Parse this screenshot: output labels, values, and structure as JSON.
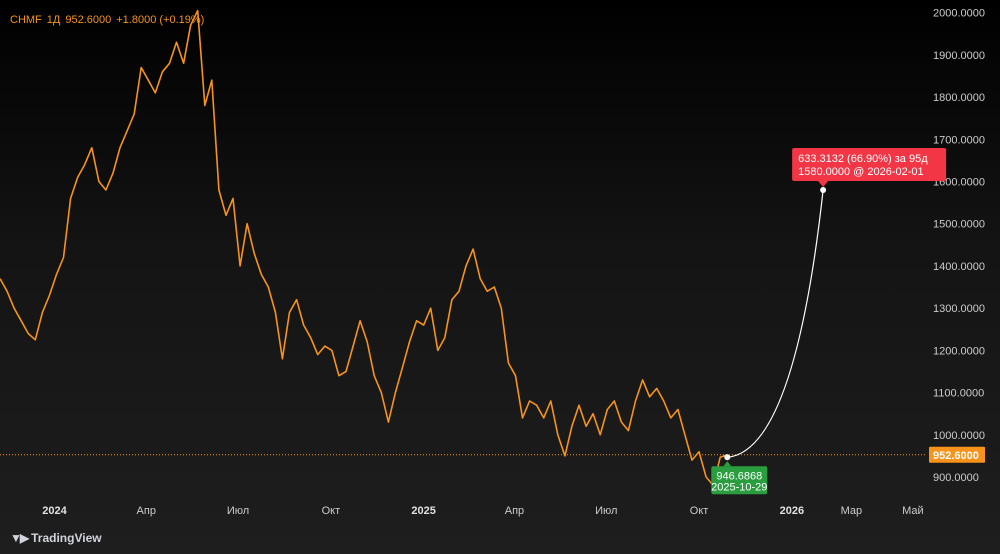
{
  "header": {
    "symbol": "CHMF",
    "interval": "1Д",
    "price": "952.6000",
    "change": "+1.8000 (+0.19%)"
  },
  "colors": {
    "line": "#f7931a",
    "projection": "#ffffff",
    "target_badge": "#f23645",
    "start_badge": "#2a9d3f",
    "price_badge": "#f7931a",
    "axis_text": "#cccccc"
  },
  "price_badge": "952.6000",
  "projection": {
    "headline": "633.3132 (66.90%) за 95д",
    "sub": "1580.0000 @ 2026-02-01",
    "start_value": "946.6868",
    "start_date": "2025-10-29"
  },
  "footer": {
    "logo_text": "TradingView",
    "logo_icon": "tradingview-logo-icon"
  },
  "chart_data": {
    "type": "line",
    "title": "",
    "xlabel": "",
    "ylabel": "",
    "ylim": [
      855,
      2030
    ],
    "y_ticks": [
      2000,
      1900,
      1800,
      1700,
      1600,
      1500,
      1400,
      1300,
      1200,
      1100,
      1000,
      900
    ],
    "y_tick_labels": [
      "2000.0000",
      "1900.0000",
      "1800.0000",
      "1700.0000",
      "1600.0000",
      "1500.0000",
      "1400.0000",
      "1300.0000",
      "1200.0000",
      "1100.0000",
      "1000.0000",
      "900.0000"
    ],
    "x_ticks": [
      {
        "label": "2024",
        "date": "2024-01-01",
        "bold": true
      },
      {
        "label": "Апр",
        "date": "2024-04-01",
        "bold": false
      },
      {
        "label": "Июл",
        "date": "2024-07-01",
        "bold": false
      },
      {
        "label": "Окт",
        "date": "2024-10-01",
        "bold": false
      },
      {
        "label": "2025",
        "date": "2025-01-01",
        "bold": true
      },
      {
        "label": "Апр",
        "date": "2025-04-01",
        "bold": false
      },
      {
        "label": "Июл",
        "date": "2025-07-01",
        "bold": false
      },
      {
        "label": "Окт",
        "date": "2025-10-01",
        "bold": false
      },
      {
        "label": "2026",
        "date": "2026-01-01",
        "bold": true
      },
      {
        "label": "Мар",
        "date": "2026-03-01",
        "bold": false
      },
      {
        "label": "Май",
        "date": "2026-05-01",
        "bold": false
      }
    ],
    "x_range": [
      "2023-11-08",
      "2026-05-13"
    ],
    "series": [
      {
        "values": [
          [
            "2023-11-08",
            1370
          ],
          [
            "2023-11-15",
            1340
          ],
          [
            "2023-11-22",
            1300
          ],
          [
            "2023-11-29",
            1270
          ],
          [
            "2023-12-06",
            1240
          ],
          [
            "2023-12-13",
            1225
          ],
          [
            "2023-12-20",
            1290
          ],
          [
            "2023-12-27",
            1330
          ],
          [
            "2024-01-03",
            1380
          ],
          [
            "2024-01-10",
            1420
          ],
          [
            "2024-01-17",
            1560
          ],
          [
            "2024-01-24",
            1610
          ],
          [
            "2024-01-31",
            1640
          ],
          [
            "2024-02-07",
            1680
          ],
          [
            "2024-02-14",
            1600
          ],
          [
            "2024-02-21",
            1580
          ],
          [
            "2024-02-28",
            1620
          ],
          [
            "2024-03-06",
            1680
          ],
          [
            "2024-03-13",
            1720
          ],
          [
            "2024-03-20",
            1760
          ],
          [
            "2024-03-27",
            1870
          ],
          [
            "2024-04-03",
            1840
          ],
          [
            "2024-04-10",
            1810
          ],
          [
            "2024-04-17",
            1860
          ],
          [
            "2024-04-24",
            1880
          ],
          [
            "2024-05-01",
            1930
          ],
          [
            "2024-05-08",
            1880
          ],
          [
            "2024-05-15",
            1970
          ],
          [
            "2024-05-22",
            2005
          ],
          [
            "2024-05-29",
            1780
          ],
          [
            "2024-06-05",
            1840
          ],
          [
            "2024-06-12",
            1580
          ],
          [
            "2024-06-19",
            1520
          ],
          [
            "2024-06-26",
            1560
          ],
          [
            "2024-07-03",
            1400
          ],
          [
            "2024-07-10",
            1500
          ],
          [
            "2024-07-17",
            1430
          ],
          [
            "2024-07-24",
            1380
          ],
          [
            "2024-07-31",
            1350
          ],
          [
            "2024-08-07",
            1290
          ],
          [
            "2024-08-14",
            1180
          ],
          [
            "2024-08-21",
            1290
          ],
          [
            "2024-08-28",
            1320
          ],
          [
            "2024-09-04",
            1260
          ],
          [
            "2024-09-11",
            1230
          ],
          [
            "2024-09-18",
            1190
          ],
          [
            "2024-09-25",
            1210
          ],
          [
            "2024-10-02",
            1200
          ],
          [
            "2024-10-09",
            1140
          ],
          [
            "2024-10-16",
            1150
          ],
          [
            "2024-10-23",
            1210
          ],
          [
            "2024-10-30",
            1270
          ],
          [
            "2024-11-06",
            1220
          ],
          [
            "2024-11-13",
            1140
          ],
          [
            "2024-11-20",
            1100
          ],
          [
            "2024-11-27",
            1030
          ],
          [
            "2024-12-04",
            1100
          ],
          [
            "2024-12-11",
            1160
          ],
          [
            "2024-12-18",
            1220
          ],
          [
            "2024-12-25",
            1270
          ],
          [
            "2025-01-01",
            1260
          ],
          [
            "2025-01-08",
            1300
          ],
          [
            "2025-01-15",
            1200
          ],
          [
            "2025-01-22",
            1230
          ],
          [
            "2025-01-29",
            1320
          ],
          [
            "2025-02-05",
            1340
          ],
          [
            "2025-02-12",
            1400
          ],
          [
            "2025-02-19",
            1440
          ],
          [
            "2025-02-26",
            1370
          ],
          [
            "2025-03-05",
            1340
          ],
          [
            "2025-03-12",
            1350
          ],
          [
            "2025-03-19",
            1300
          ],
          [
            "2025-03-26",
            1170
          ],
          [
            "2025-04-02",
            1140
          ],
          [
            "2025-04-09",
            1040
          ],
          [
            "2025-04-16",
            1080
          ],
          [
            "2025-04-23",
            1070
          ],
          [
            "2025-04-30",
            1040
          ],
          [
            "2025-05-07",
            1080
          ],
          [
            "2025-05-14",
            1000
          ],
          [
            "2025-05-21",
            950
          ],
          [
            "2025-05-28",
            1020
          ],
          [
            "2025-06-04",
            1070
          ],
          [
            "2025-06-11",
            1020
          ],
          [
            "2025-06-18",
            1050
          ],
          [
            "2025-06-25",
            1000
          ],
          [
            "2025-07-02",
            1060
          ],
          [
            "2025-07-09",
            1080
          ],
          [
            "2025-07-16",
            1030
          ],
          [
            "2025-07-23",
            1010
          ],
          [
            "2025-07-30",
            1080
          ],
          [
            "2025-08-06",
            1130
          ],
          [
            "2025-08-13",
            1090
          ],
          [
            "2025-08-20",
            1110
          ],
          [
            "2025-08-27",
            1080
          ],
          [
            "2025-09-03",
            1040
          ],
          [
            "2025-09-10",
            1060
          ],
          [
            "2025-09-17",
            1000
          ],
          [
            "2025-09-24",
            940
          ],
          [
            "2025-10-01",
            960
          ],
          [
            "2025-10-08",
            900
          ],
          [
            "2025-10-15",
            880
          ],
          [
            "2025-10-22",
            946.6868
          ],
          [
            "2025-10-29",
            952.6
          ]
        ]
      }
    ],
    "projection": {
      "from": [
        "2025-10-29",
        946.6868
      ],
      "to": [
        "2026-02-01",
        1580
      ]
    },
    "last_price_line": 952.6
  }
}
